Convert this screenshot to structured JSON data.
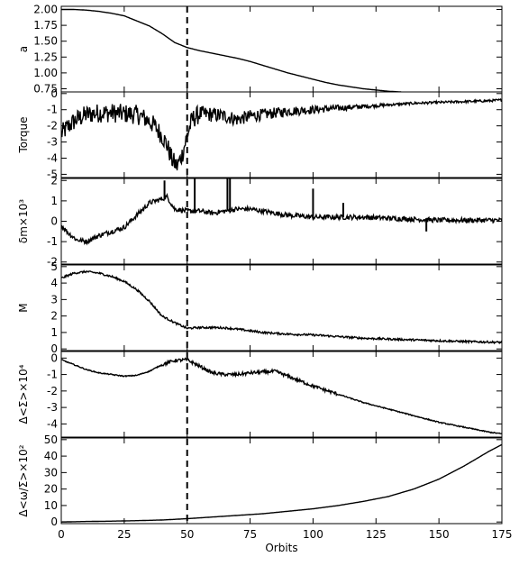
{
  "chart_data": {
    "type": "line",
    "xlabel": "Orbits",
    "xlim": [
      0,
      175
    ],
    "xticks": [
      "0",
      "25",
      "50",
      "75",
      "100",
      "125",
      "150",
      "175"
    ],
    "vline_x": 50,
    "panels": [
      {
        "id": "a",
        "ylabel": "a",
        "ylim": [
          0.7,
          2.05
        ],
        "ytick_values": [
          0.75,
          1.0,
          1.25,
          1.5,
          1.75,
          2.0
        ],
        "yticks": [
          "0.75",
          "1.00",
          "1.25",
          "1.50",
          "1.75",
          "2.00"
        ],
        "noise": 0,
        "points": [
          [
            0,
            2.0
          ],
          [
            5,
            2.0
          ],
          [
            10,
            1.99
          ],
          [
            15,
            1.97
          ],
          [
            20,
            1.94
          ],
          [
            25,
            1.9
          ],
          [
            30,
            1.82
          ],
          [
            35,
            1.74
          ],
          [
            40,
            1.62
          ],
          [
            45,
            1.48
          ],
          [
            50,
            1.4
          ],
          [
            55,
            1.35
          ],
          [
            60,
            1.31
          ],
          [
            65,
            1.27
          ],
          [
            70,
            1.23
          ],
          [
            75,
            1.18
          ],
          [
            80,
            1.12
          ],
          [
            85,
            1.06
          ],
          [
            90,
            1.0
          ],
          [
            95,
            0.95
          ],
          [
            100,
            0.9
          ],
          [
            105,
            0.85
          ],
          [
            110,
            0.81
          ],
          [
            115,
            0.78
          ],
          [
            120,
            0.75
          ],
          [
            125,
            0.73
          ],
          [
            130,
            0.71
          ],
          [
            135,
            0.7
          ]
        ]
      },
      {
        "id": "torque",
        "ylabel": "Torque",
        "ylim": [
          -5.2,
          0.1
        ],
        "ytick_values": [
          -5,
          -4,
          -3,
          -2,
          -1,
          0
        ],
        "yticks": [
          "-5",
          "-4",
          "-3",
          "-2",
          "-1",
          "0"
        ],
        "noise": 0.5,
        "points": [
          [
            0,
            -2.5
          ],
          [
            3,
            -2.0
          ],
          [
            6,
            -1.6
          ],
          [
            10,
            -1.3
          ],
          [
            15,
            -1.2
          ],
          [
            20,
            -1.2
          ],
          [
            25,
            -1.25
          ],
          [
            30,
            -1.3
          ],
          [
            34,
            -1.6
          ],
          [
            37,
            -2.0
          ],
          [
            40,
            -2.6
          ],
          [
            42,
            -3.2
          ],
          [
            44,
            -4.1
          ],
          [
            46,
            -4.5
          ],
          [
            48,
            -3.8
          ],
          [
            50,
            -2.6
          ],
          [
            52,
            -1.6
          ],
          [
            55,
            -1.25
          ],
          [
            60,
            -1.3
          ],
          [
            65,
            -1.4
          ],
          [
            70,
            -1.6
          ],
          [
            75,
            -1.4
          ],
          [
            80,
            -1.3
          ],
          [
            90,
            -1.1
          ],
          [
            100,
            -1.0
          ],
          [
            110,
            -0.9
          ],
          [
            120,
            -0.8
          ],
          [
            130,
            -0.7
          ],
          [
            140,
            -0.6
          ],
          [
            150,
            -0.55
          ],
          [
            160,
            -0.5
          ],
          [
            170,
            -0.45
          ],
          [
            175,
            -0.4
          ]
        ]
      },
      {
        "id": "dm",
        "ylabel": "δm×10³",
        "ylim": [
          -2.1,
          2.1
        ],
        "ytick_values": [
          -2,
          -1,
          0,
          1,
          2
        ],
        "yticks": [
          "-2",
          "-1",
          "0",
          "1",
          "2"
        ],
        "noise": 0.12,
        "points": [
          [
            0,
            -0.2
          ],
          [
            3,
            -0.6
          ],
          [
            6,
            -0.9
          ],
          [
            10,
            -1.0
          ],
          [
            15,
            -0.7
          ],
          [
            20,
            -0.5
          ],
          [
            25,
            -0.3
          ],
          [
            30,
            0.3
          ],
          [
            35,
            0.9
          ],
          [
            40,
            1.1
          ],
          [
            42,
            1.2
          ],
          [
            45,
            0.6
          ],
          [
            50,
            0.5
          ],
          [
            55,
            0.5
          ],
          [
            60,
            0.4
          ],
          [
            65,
            0.5
          ],
          [
            70,
            0.6
          ],
          [
            75,
            0.6
          ],
          [
            80,
            0.5
          ],
          [
            85,
            0.4
          ],
          [
            90,
            0.3
          ],
          [
            100,
            0.2
          ],
          [
            110,
            0.2
          ],
          [
            120,
            0.2
          ],
          [
            130,
            0.15
          ],
          [
            140,
            0.1
          ],
          [
            150,
            0.05
          ],
          [
            160,
            0.05
          ],
          [
            175,
            0.05
          ]
        ],
        "spikes": [
          [
            41,
            2.0
          ],
          [
            53,
            2.2
          ],
          [
            66,
            2.2
          ],
          [
            67,
            2.2
          ],
          [
            100,
            1.6
          ],
          [
            112,
            0.9
          ],
          [
            145,
            -0.5
          ]
        ]
      },
      {
        "id": "mdot",
        "ylabel": "M",
        "ylim": [
          -0.1,
          5.1
        ],
        "ytick_values": [
          0,
          1,
          2,
          3,
          4,
          5
        ],
        "yticks": [
          "0",
          "1",
          "2",
          "3",
          "4",
          "5"
        ],
        "noise": 0.06,
        "points": [
          [
            0,
            4.3
          ],
          [
            5,
            4.6
          ],
          [
            10,
            4.7
          ],
          [
            15,
            4.6
          ],
          [
            20,
            4.4
          ],
          [
            25,
            4.1
          ],
          [
            30,
            3.6
          ],
          [
            35,
            2.9
          ],
          [
            40,
            2.0
          ],
          [
            45,
            1.6
          ],
          [
            50,
            1.25
          ],
          [
            55,
            1.3
          ],
          [
            60,
            1.3
          ],
          [
            65,
            1.28
          ],
          [
            70,
            1.2
          ],
          [
            75,
            1.1
          ],
          [
            80,
            1.0
          ],
          [
            90,
            0.9
          ],
          [
            100,
            0.85
          ],
          [
            110,
            0.75
          ],
          [
            120,
            0.65
          ],
          [
            130,
            0.6
          ],
          [
            140,
            0.55
          ],
          [
            150,
            0.5
          ],
          [
            160,
            0.45
          ],
          [
            175,
            0.4
          ]
        ]
      },
      {
        "id": "dsigma",
        "ylabel": "Δ<Σ>×10⁴",
        "ylim": [
          -4.8,
          0.4
        ],
        "ytick_values": [
          -4,
          -3,
          -2,
          -1,
          0
        ],
        "yticks": [
          "-4",
          "-3",
          "-2",
          "-1",
          "0"
        ],
        "noise": 0.1,
        "points": [
          [
            0,
            -0.1
          ],
          [
            5,
            -0.4
          ],
          [
            10,
            -0.7
          ],
          [
            15,
            -0.9
          ],
          [
            20,
            -1.0
          ],
          [
            25,
            -1.1
          ],
          [
            30,
            -1.05
          ],
          [
            35,
            -0.8
          ],
          [
            40,
            -0.4
          ],
          [
            45,
            -0.15
          ],
          [
            50,
            -0.1
          ],
          [
            55,
            -0.5
          ],
          [
            60,
            -0.9
          ],
          [
            65,
            -1.0
          ],
          [
            70,
            -1.0
          ],
          [
            75,
            -0.9
          ],
          [
            80,
            -0.85
          ],
          [
            85,
            -0.8
          ],
          [
            90,
            -1.1
          ],
          [
            95,
            -1.4
          ],
          [
            100,
            -1.7
          ],
          [
            110,
            -2.2
          ],
          [
            120,
            -2.7
          ],
          [
            130,
            -3.1
          ],
          [
            140,
            -3.5
          ],
          [
            150,
            -3.9
          ],
          [
            160,
            -4.2
          ],
          [
            170,
            -4.5
          ],
          [
            175,
            -4.6
          ]
        ]
      },
      {
        "id": "dratio",
        "ylabel": "Δ<ω/Σ>×10²",
        "ylim": [
          -1,
          51
        ],
        "ytick_values": [
          0,
          10,
          20,
          30,
          40,
          50
        ],
        "yticks": [
          "0",
          "10",
          "20",
          "30",
          "40",
          "50"
        ],
        "noise": 0,
        "points": [
          [
            0,
            0
          ],
          [
            10,
            0.3
          ],
          [
            20,
            0.5
          ],
          [
            30,
            0.8
          ],
          [
            40,
            1.2
          ],
          [
            50,
            2
          ],
          [
            60,
            3
          ],
          [
            70,
            4
          ],
          [
            80,
            5
          ],
          [
            90,
            6.5
          ],
          [
            100,
            8
          ],
          [
            110,
            10
          ],
          [
            120,
            12.5
          ],
          [
            130,
            15.5
          ],
          [
            140,
            20
          ],
          [
            150,
            26
          ],
          [
            160,
            34
          ],
          [
            170,
            43
          ],
          [
            175,
            47
          ]
        ]
      }
    ]
  }
}
